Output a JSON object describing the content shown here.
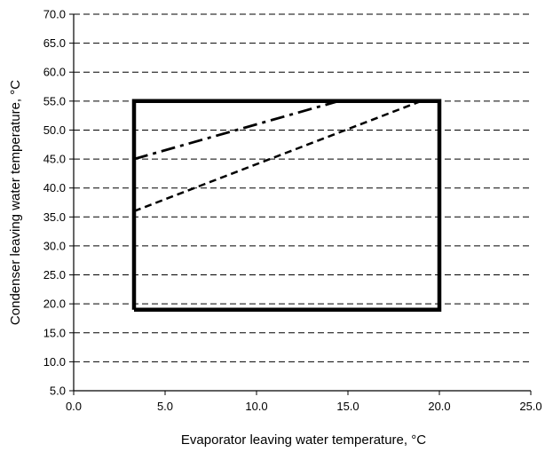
{
  "chart_data": {
    "type": "line",
    "title": "",
    "xlabel": "Evaporator leaving water temperature, °C",
    "ylabel": "Condenser leaving water temperature, °C",
    "xlim": [
      0,
      25
    ],
    "ylim": [
      5,
      70
    ],
    "x_ticks": [
      "0.0",
      "5.0",
      "10.0",
      "15.0",
      "20.0",
      "25.0"
    ],
    "y_ticks": [
      "5.0",
      "10.0",
      "15.0",
      "20.0",
      "25.0",
      "30.0",
      "35.0",
      "40.0",
      "45.0",
      "50.0",
      "55.0",
      "60.0",
      "65.0",
      "70.0"
    ],
    "grid": {
      "horizontal": true,
      "vertical": false,
      "style": "dashed"
    },
    "legend": "none",
    "series": [
      {
        "style": "solid-thick",
        "x": [
          3.3,
          20,
          20,
          3.3,
          3.3
        ],
        "y": [
          19,
          19,
          55,
          55,
          19
        ]
      },
      {
        "style": "dash-dot",
        "x": [
          3.3,
          14.5
        ],
        "y": [
          45,
          55
        ]
      },
      {
        "style": "dashed",
        "x": [
          3.3,
          19
        ],
        "y": [
          36,
          55
        ]
      }
    ]
  }
}
